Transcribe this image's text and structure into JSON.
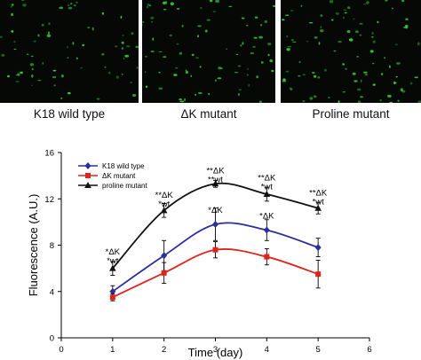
{
  "panels": [
    {
      "caption": "K18 wild type"
    },
    {
      "caption": "ΔK mutant"
    },
    {
      "caption": "Proline mutant"
    }
  ],
  "colors": {
    "micrograph_bg": "#050805",
    "cell_fluorescence": "#3cd23c"
  },
  "chart_data": {
    "type": "line",
    "xlabel": "Time (day)",
    "ylabel": "Fluorescence (A.U.)",
    "xlim": [
      0,
      6
    ],
    "ylim": [
      0,
      16
    ],
    "xticks": [
      0,
      1,
      2,
      3,
      4,
      5,
      6
    ],
    "yticks": [
      0,
      4,
      8,
      12,
      16
    ],
    "grid": false,
    "legend_position": "top-left",
    "x": [
      1,
      2,
      3,
      4,
      5
    ],
    "series": [
      {
        "name": "K18 wild type",
        "color": "#2b2f9e",
        "marker": "diamond",
        "values": [
          4.0,
          7.1,
          9.8,
          9.3,
          7.8
        ],
        "errors": [
          0.5,
          1.3,
          1.4,
          0.9,
          0.8
        ]
      },
      {
        "name": "ΔK mutant",
        "color": "#e0241b",
        "marker": "square",
        "values": [
          3.5,
          5.6,
          7.6,
          7.0,
          5.5
        ],
        "errors": [
          0.3,
          0.9,
          0.7,
          0.7,
          1.2
        ]
      },
      {
        "name": "proline mutant",
        "color": "#111111",
        "marker": "triangle",
        "values": [
          6.0,
          11.0,
          13.3,
          12.4,
          11.2
        ],
        "errors": [
          0.6,
          0.6,
          0.3,
          0.6,
          0.5
        ]
      }
    ],
    "annotations": [
      {
        "x": 1,
        "y": 7.2,
        "lines": [
          "*ΔK",
          "*wt"
        ]
      },
      {
        "x": 2,
        "y": 12.1,
        "lines": [
          "**ΔK",
          "*wt"
        ]
      },
      {
        "x": 3,
        "y": 14.2,
        "lines": [
          "**ΔK",
          "**wt"
        ]
      },
      {
        "x": 3,
        "y": 10.8,
        "lines": [
          "*ΔK"
        ]
      },
      {
        "x": 4,
        "y": 13.6,
        "lines": [
          "**ΔK",
          "*wt"
        ]
      },
      {
        "x": 4,
        "y": 10.3,
        "lines": [
          "*ΔK"
        ]
      },
      {
        "x": 5,
        "y": 12.3,
        "lines": [
          "**ΔK",
          "*wt"
        ]
      }
    ]
  }
}
